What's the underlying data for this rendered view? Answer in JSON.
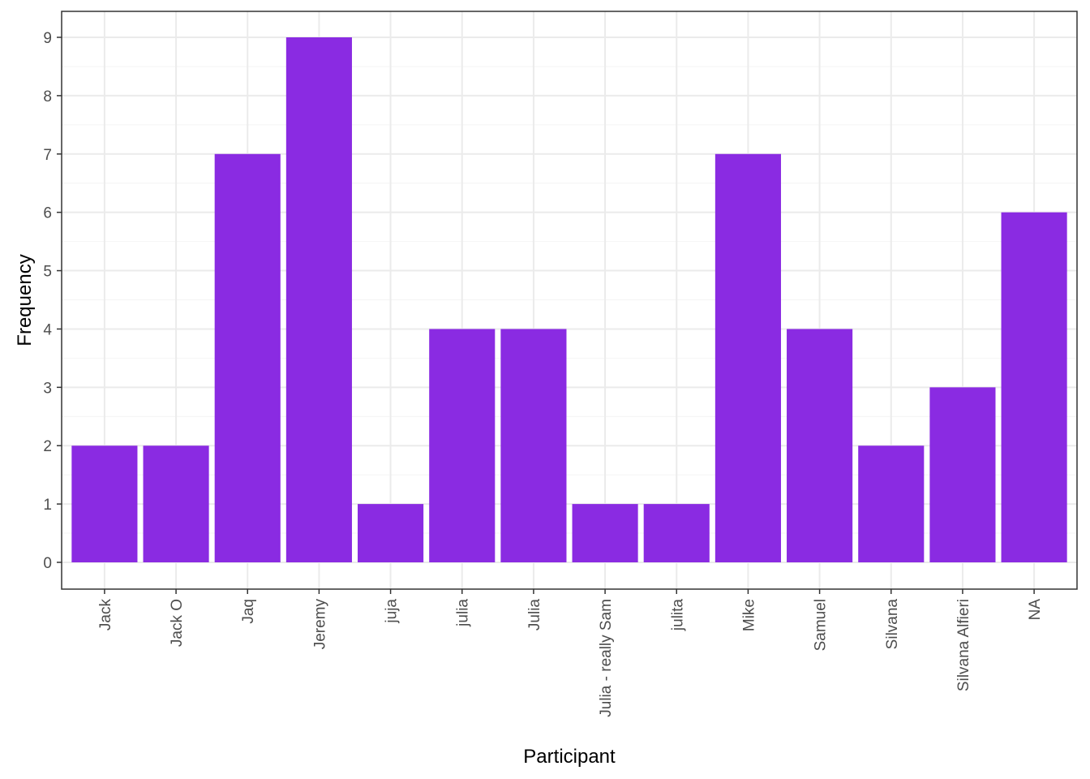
{
  "colors": {
    "bar": "#8A2BE2",
    "grid_major": "#EBEBEB",
    "grid_minor": "#F4F4F4",
    "panel_border": "#333333",
    "tick_text": "#4D4D4D"
  },
  "chart_data": {
    "type": "bar",
    "categories": [
      "Jack",
      "Jack O",
      "Jaq",
      "Jeremy",
      "juja",
      "julia",
      "Julia",
      "Julia - really Sam",
      "julita",
      "Mike",
      "Samuel",
      "Silvana",
      "Silvana Alfieri",
      "NA"
    ],
    "values": [
      2,
      2,
      7,
      9,
      1,
      4,
      4,
      1,
      1,
      7,
      4,
      2,
      3,
      6
    ],
    "title": "",
    "xlabel": "Participant",
    "ylabel": "Frequency",
    "ylim": [
      0,
      9
    ],
    "yticks": [
      0,
      1,
      2,
      3,
      4,
      5,
      6,
      7,
      8,
      9
    ],
    "grid": true,
    "legend": "none"
  }
}
